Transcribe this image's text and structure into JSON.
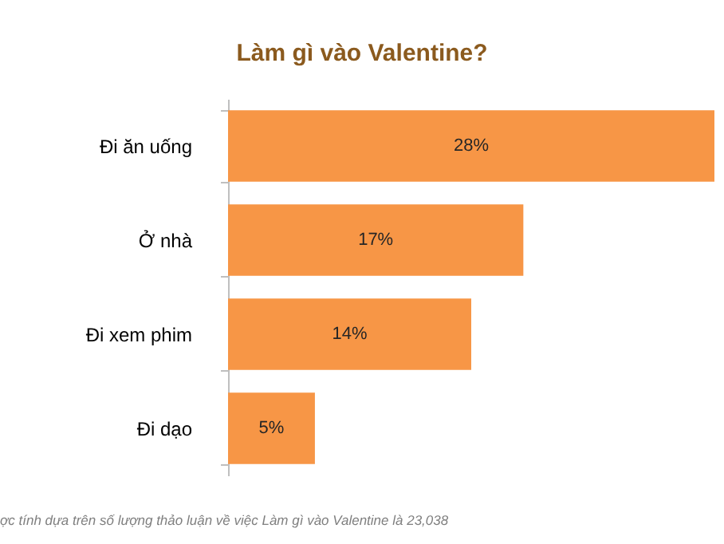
{
  "chart_data": {
    "type": "bar",
    "orientation": "horizontal",
    "title": "Làm gì vào Valentine?",
    "categories": [
      "Đi ăn uống",
      "Ở nhà",
      "Đi xem phim",
      "Đi dạo"
    ],
    "values": [
      28,
      17,
      14,
      5
    ],
    "value_labels": [
      "28%",
      "17%",
      "14%",
      "5%"
    ],
    "color": "#f79646",
    "grid": false,
    "annotations": [
      "ợc tính dựa trên số lượng thảo luận về việc Làm gì vào Valentine là  23,038"
    ]
  }
}
